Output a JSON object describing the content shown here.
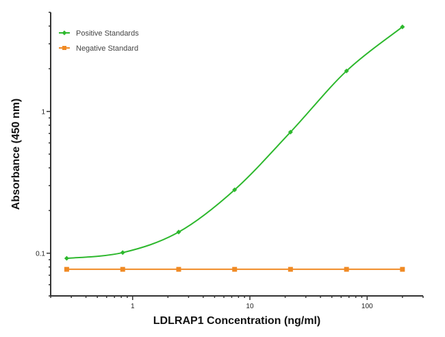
{
  "chart_data": {
    "type": "line",
    "title": "",
    "xlabel": "LDLRAP1 Concentration (ng/ml)",
    "ylabel": "Absorbance (450 nm)",
    "xscale": "log",
    "yscale": "log",
    "xlim": [
      0.2,
      300
    ],
    "ylim": [
      0.05,
      5
    ],
    "x_tick_labels": [
      "1",
      "10",
      "100"
    ],
    "x_ticks": [
      1,
      10,
      100
    ],
    "y_tick_labels": [
      "0.1",
      "1"
    ],
    "y_ticks": [
      0.1,
      1
    ],
    "grid": false,
    "legend_position": "top-left",
    "series": [
      {
        "name": "Positive Standards",
        "color": "#2db82d",
        "marker": "diamond",
        "fit": "smooth curve",
        "x": [
          0.274,
          0.823,
          2.47,
          7.41,
          22.2,
          66.7,
          200
        ],
        "y": [
          0.092,
          0.101,
          0.141,
          0.28,
          0.715,
          1.93,
          3.95
        ]
      },
      {
        "name": "Negative Standard",
        "color": "#f08a24",
        "marker": "square",
        "fit": "line",
        "x": [
          0.274,
          0.823,
          2.47,
          7.41,
          22.2,
          66.7,
          200
        ],
        "y": [
          0.077,
          0.077,
          0.077,
          0.077,
          0.077,
          0.077,
          0.077
        ]
      }
    ]
  }
}
